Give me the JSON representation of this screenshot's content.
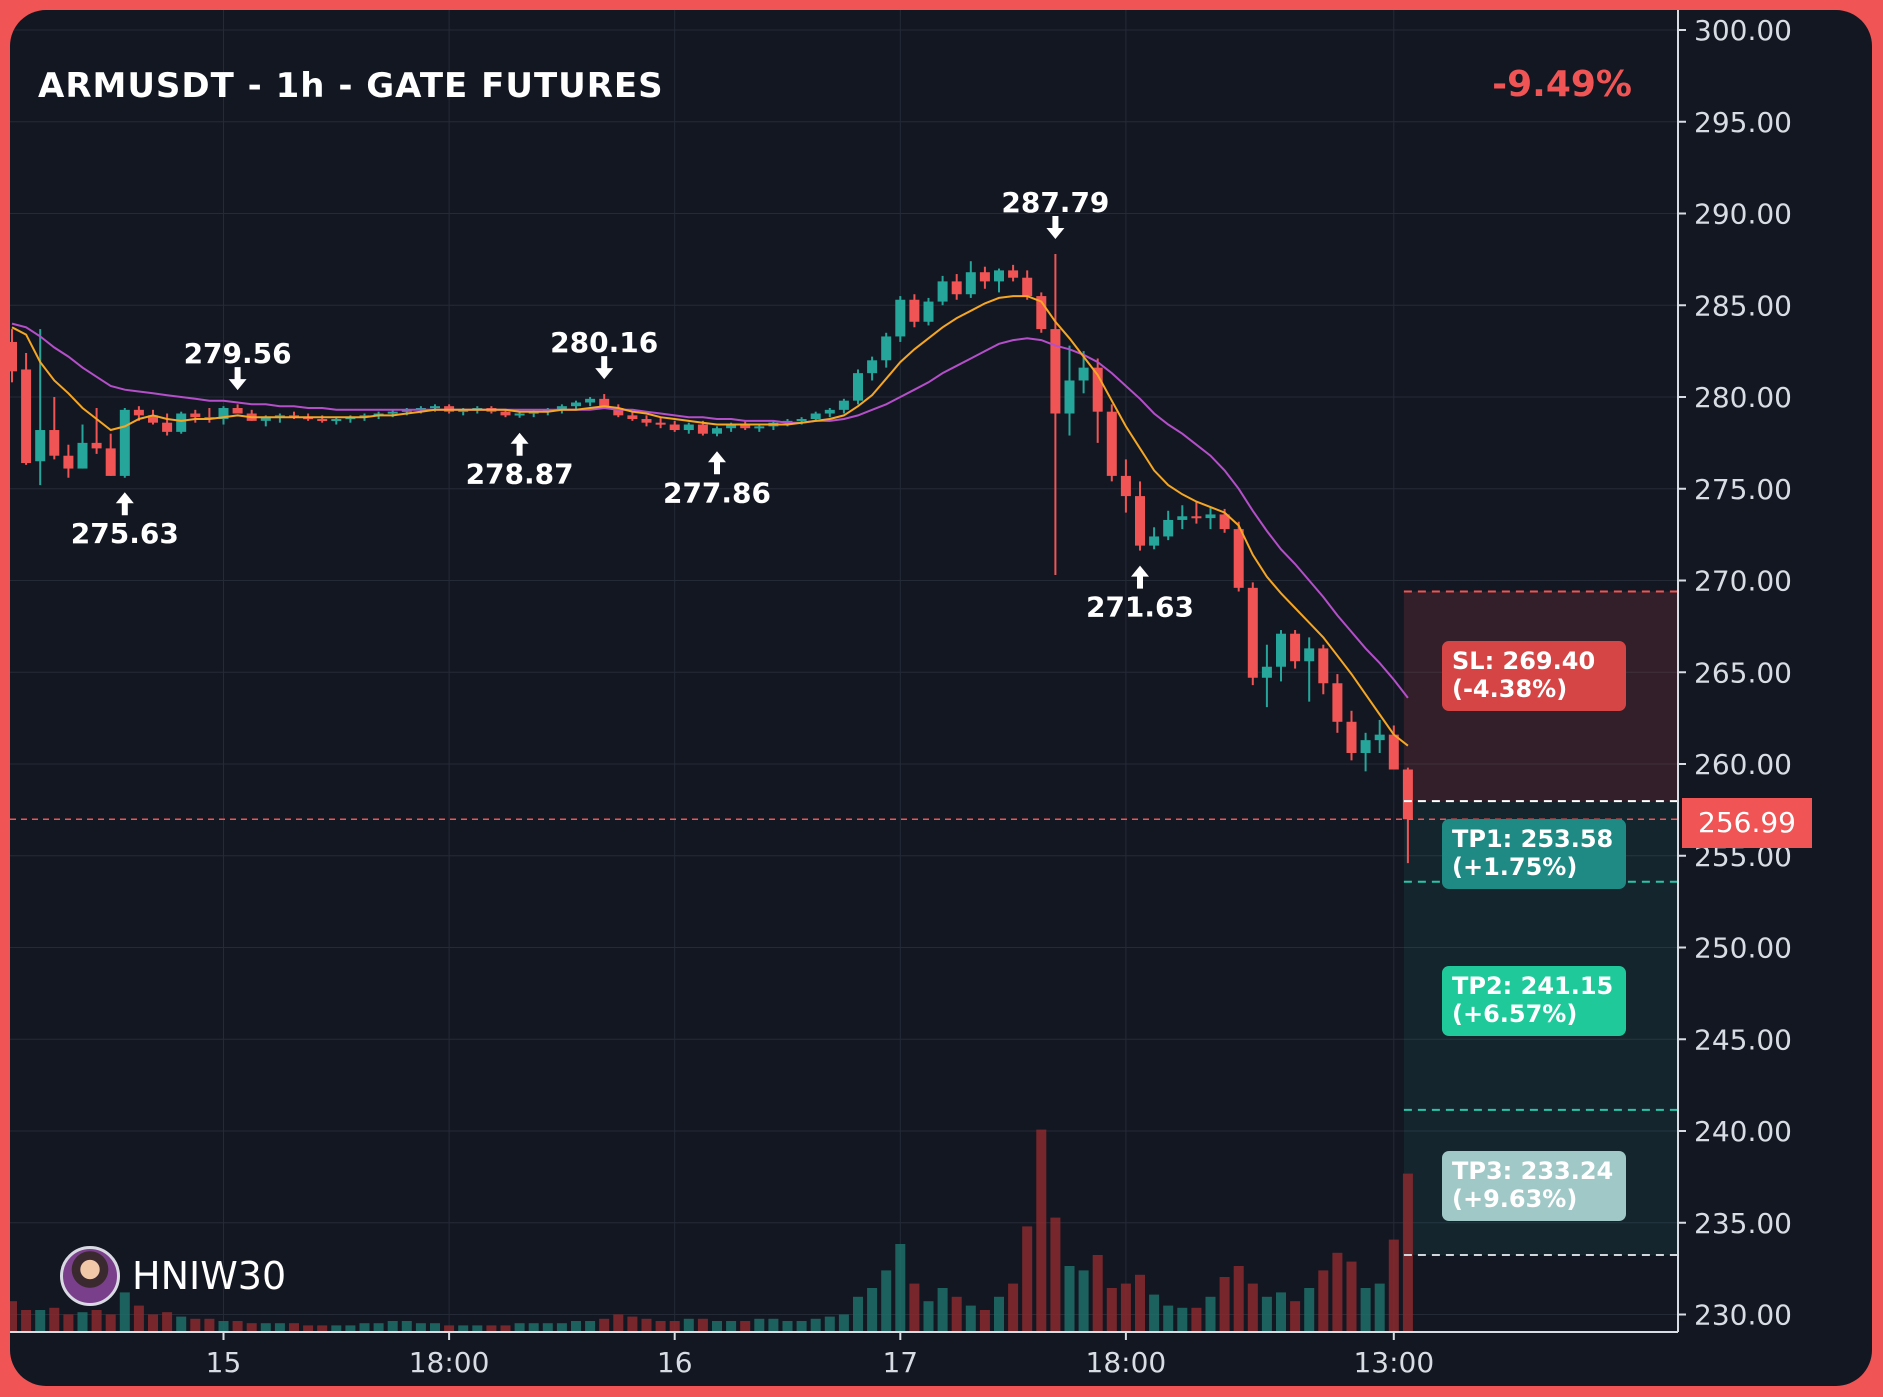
{
  "header": {
    "title": "ARMUSDT - 1h - GATE FUTURES",
    "change": "-9.49%"
  },
  "watermark": {
    "name": "HNIW30",
    "avatar_icon": "avatar-icon"
  },
  "levels": {
    "sl": {
      "line1": "SL: 269.40",
      "line2": "(-4.38%)",
      "price": 269.4,
      "color": "#d64545"
    },
    "tp1": {
      "line1": "TP1: 253.58",
      "line2": "(+1.75%)",
      "price": 253.58,
      "color": "#1f8a84"
    },
    "tp2": {
      "line1": "TP2: 241.15",
      "line2": "(+6.57%)",
      "price": 241.15,
      "color": "#1fc99a"
    },
    "tp3": {
      "line1": "TP3: 233.24",
      "line2": "(+9.63%)",
      "price": 233.24,
      "color": "#9fc8c6"
    },
    "entry": 257.98
  },
  "current_price": {
    "label": "256.99",
    "value": 256.99
  },
  "colors": {
    "background": "#131722",
    "frame": "#f05454",
    "up": "#26a69a",
    "down": "#f05454",
    "ema_fast": "#f5a623",
    "ema_slow": "#b44fc9"
  },
  "chart_data": {
    "type": "candlestick",
    "title": "ARMUSDT - 1h - GATE FUTURES",
    "y_axis": {
      "side": "right",
      "range": [
        229,
        301
      ],
      "ticks": [
        "300.00",
        "295.00",
        "290.00",
        "285.00",
        "280.00",
        "275.00",
        "270.00",
        "265.00",
        "260.00",
        "255.00",
        "250.00",
        "245.00",
        "240.00",
        "235.00",
        "230.00"
      ]
    },
    "x_axis": {
      "ticks": [
        {
          "label": "15",
          "index": 15
        },
        {
          "label": "18:00",
          "index": 31
        },
        {
          "label": "16",
          "index": 47
        },
        {
          "label": "17",
          "index": 63
        },
        {
          "label": "18:00",
          "index": 79
        },
        {
          "label": "13:00",
          "index": 98
        }
      ]
    },
    "annotations": [
      {
        "label": "275.63",
        "index": 8,
        "price": 275.63,
        "type": "low"
      },
      {
        "label": "279.56",
        "index": 16,
        "price": 279.56,
        "type": "high"
      },
      {
        "label": "278.87",
        "index": 36,
        "price": 278.87,
        "type": "low"
      },
      {
        "label": "280.16",
        "index": 42,
        "price": 280.16,
        "type": "high"
      },
      {
        "label": "277.86",
        "index": 50,
        "price": 277.86,
        "type": "low"
      },
      {
        "label": "287.79",
        "index": 74,
        "price": 287.79,
        "type": "high"
      },
      {
        "label": "271.63",
        "index": 80,
        "price": 271.63,
        "type": "low"
      }
    ],
    "candles": [
      [
        283,
        283.7,
        280.8,
        281.4
      ],
      [
        281.5,
        282.4,
        276.3,
        276.4
      ],
      [
        276.5,
        283.7,
        275.2,
        278.2
      ],
      [
        278.2,
        280,
        276.6,
        276.8
      ],
      [
        276.8,
        277.4,
        275.6,
        276.1
      ],
      [
        276.1,
        278.5,
        276.1,
        277.5
      ],
      [
        277.5,
        279.4,
        276.9,
        277.2
      ],
      [
        277.2,
        278,
        275.7,
        275.7
      ],
      [
        275.7,
        279.4,
        275.6,
        279.3
      ],
      [
        279.3,
        279.5,
        278.7,
        279
      ],
      [
        279,
        279.3,
        278.5,
        278.6
      ],
      [
        278.6,
        279.1,
        277.9,
        278.1
      ],
      [
        278.1,
        279.2,
        278,
        279.1
      ],
      [
        279.1,
        279.3,
        278.6,
        278.9
      ],
      [
        278.9,
        279.4,
        278.6,
        278.8
      ],
      [
        278.8,
        279.5,
        278.5,
        279.4
      ],
      [
        279.4,
        279.6,
        279.1,
        279.1
      ],
      [
        279.1,
        279.3,
        278.7,
        278.7
      ],
      [
        278.7,
        279,
        278.4,
        278.9
      ],
      [
        278.9,
        279.1,
        278.6,
        279
      ],
      [
        279,
        279.2,
        278.8,
        278.9
      ],
      [
        278.9,
        279.1,
        278.7,
        278.8
      ],
      [
        278.8,
        279,
        278.6,
        278.7
      ],
      [
        278.7,
        278.9,
        278.5,
        278.8
      ],
      [
        278.8,
        279,
        278.6,
        278.9
      ],
      [
        278.9,
        279.1,
        278.7,
        279
      ],
      [
        279,
        279.2,
        278.8,
        279.1
      ],
      [
        279.1,
        279.3,
        278.9,
        279.2
      ],
      [
        279.2,
        279.4,
        279,
        279.3
      ],
      [
        279.3,
        279.5,
        279.1,
        279.4
      ],
      [
        279.4,
        279.6,
        279.2,
        279.5
      ],
      [
        279.5,
        279.6,
        279.1,
        279.2
      ],
      [
        279.2,
        279.4,
        279,
        279.3
      ],
      [
        279.3,
        279.5,
        279.1,
        279.4
      ],
      [
        279.4,
        279.5,
        279.1,
        279.2
      ],
      [
        279.2,
        279.3,
        278.9,
        279
      ],
      [
        279,
        279.2,
        278.87,
        279.1
      ],
      [
        279.1,
        279.3,
        278.9,
        279.2
      ],
      [
        279.2,
        279.4,
        279,
        279.3
      ],
      [
        279.3,
        279.6,
        279.1,
        279.5
      ],
      [
        279.5,
        279.8,
        279.3,
        279.7
      ],
      [
        279.7,
        280,
        279.5,
        279.9
      ],
      [
        279.9,
        280.16,
        279.4,
        279.4
      ],
      [
        279.4,
        279.6,
        278.9,
        279
      ],
      [
        279,
        279.2,
        278.7,
        278.8
      ],
      [
        278.8,
        279,
        278.4,
        278.6
      ],
      [
        278.6,
        278.9,
        278.3,
        278.5
      ],
      [
        278.5,
        278.7,
        278.1,
        278.2
      ],
      [
        278.2,
        278.6,
        278,
        278.5
      ],
      [
        278.5,
        278.7,
        277.9,
        278
      ],
      [
        278,
        278.4,
        277.86,
        278.3
      ],
      [
        278.3,
        278.6,
        278.1,
        278.5
      ],
      [
        278.5,
        278.7,
        278.2,
        278.3
      ],
      [
        278.3,
        278.5,
        278.1,
        278.4
      ],
      [
        278.4,
        278.7,
        278.2,
        278.6
      ],
      [
        278.6,
        278.8,
        278.4,
        278.7
      ],
      [
        278.7,
        278.9,
        278.5,
        278.8
      ],
      [
        278.8,
        279.2,
        278.7,
        279.1
      ],
      [
        279.1,
        279.4,
        278.9,
        279.3
      ],
      [
        279.3,
        279.9,
        279.1,
        279.8
      ],
      [
        279.8,
        281.5,
        279.6,
        281.3
      ],
      [
        281.3,
        282.2,
        280.9,
        282
      ],
      [
        282,
        283.5,
        281.6,
        283.3
      ],
      [
        283.3,
        285.5,
        283,
        285.3
      ],
      [
        285.3,
        285.6,
        283.8,
        284.1
      ],
      [
        284.1,
        285.4,
        283.9,
        285.2
      ],
      [
        285.2,
        286.6,
        285,
        286.3
      ],
      [
        286.3,
        286.7,
        285.3,
        285.6
      ],
      [
        285.6,
        287.4,
        285.4,
        286.8
      ],
      [
        286.8,
        287.1,
        285.9,
        286.3
      ],
      [
        286.3,
        287,
        285.7,
        286.9
      ],
      [
        286.9,
        287.2,
        286.3,
        286.5
      ],
      [
        286.5,
        286.9,
        285.3,
        285.5
      ],
      [
        285.5,
        285.7,
        283.5,
        283.7
      ],
      [
        283.7,
        287.79,
        270.3,
        279.1
      ],
      [
        279.1,
        282.8,
        277.9,
        280.9
      ],
      [
        280.9,
        282.5,
        280.2,
        281.6
      ],
      [
        281.6,
        282.1,
        277.5,
        279.2
      ],
      [
        279.2,
        279.6,
        275.4,
        275.7
      ],
      [
        275.7,
        276.6,
        273.7,
        274.6
      ],
      [
        274.6,
        275.4,
        271.63,
        271.9
      ],
      [
        271.9,
        272.9,
        271.7,
        272.4
      ],
      [
        272.4,
        273.8,
        272.2,
        273.3
      ],
      [
        273.3,
        274.1,
        272.8,
        273.5
      ],
      [
        273.5,
        274.3,
        273.1,
        273.4
      ],
      [
        273.4,
        274,
        272.8,
        273.6
      ],
      [
        273.6,
        273.9,
        272.6,
        272.8
      ],
      [
        272.8,
        273.2,
        269.4,
        269.6
      ],
      [
        269.6,
        269.9,
        264.3,
        264.7
      ],
      [
        264.7,
        266.5,
        263.1,
        265.3
      ],
      [
        265.3,
        267.3,
        264.5,
        267.1
      ],
      [
        267.1,
        267.3,
        265.2,
        265.6
      ],
      [
        265.6,
        266.9,
        263.4,
        266.3
      ],
      [
        266.3,
        266.5,
        263.8,
        264.4
      ],
      [
        264.4,
        264.9,
        261.7,
        262.3
      ],
      [
        262.3,
        262.9,
        260.2,
        260.6
      ],
      [
        260.6,
        261.7,
        259.6,
        261.3
      ],
      [
        261.3,
        262.4,
        260.6,
        261.6
      ],
      [
        261.6,
        262.1,
        259.7,
        259.7
      ],
      [
        259.7,
        259.8,
        254.6,
        256.99
      ]
    ],
    "ema_fast": [
      283.8,
      283.4,
      281.9,
      280.9,
      280.2,
      279.4,
      278.8,
      278.2,
      278.4,
      278.8,
      279,
      278.8,
      278.7,
      278.8,
      278.8,
      278.9,
      279,
      278.9,
      278.9,
      278.9,
      278.9,
      278.9,
      278.9,
      278.9,
      278.9,
      278.9,
      279,
      279,
      279.1,
      279.2,
      279.3,
      279.3,
      279.3,
      279.3,
      279.3,
      279.3,
      279.2,
      279.2,
      279.2,
      279.3,
      279.3,
      279.4,
      279.5,
      279.4,
      279.2,
      279.1,
      278.9,
      278.8,
      278.7,
      278.6,
      278.5,
      278.5,
      278.5,
      278.5,
      278.5,
      278.5,
      278.6,
      278.7,
      278.8,
      279,
      279.5,
      280.1,
      281,
      281.9,
      282.6,
      283.2,
      283.8,
      284.3,
      284.7,
      285.1,
      285.4,
      285.5,
      285.5,
      285.2,
      284.1,
      283.2,
      282.2,
      281.2,
      279.8,
      278.4,
      277.2,
      276,
      275.2,
      274.7,
      274.3,
      274,
      273.7,
      273,
      271.4,
      270.2,
      269.3,
      268.5,
      267.7,
      266.9,
      265.9,
      264.9,
      263.8,
      262.7,
      261.6,
      261.0
    ]
  }
}
